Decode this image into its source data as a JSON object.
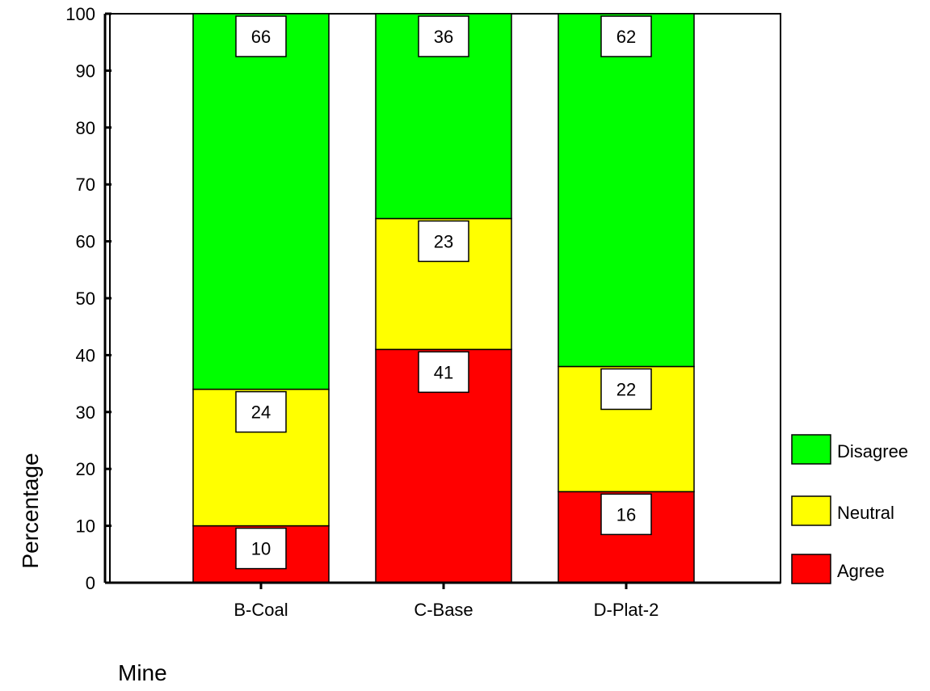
{
  "chart_data": {
    "type": "bar",
    "stacked": true,
    "title": "",
    "xlabel": "Mine",
    "ylabel": "Percentage",
    "ylim": [
      0,
      100
    ],
    "yticks": [
      0,
      10,
      20,
      30,
      40,
      50,
      60,
      70,
      80,
      90,
      100
    ],
    "grid": false,
    "legend_position": "right",
    "categories": [
      "B-Coal",
      "C-Base",
      "D-Plat-2"
    ],
    "series": [
      {
        "name": "Agree",
        "color": "#ff0000",
        "values": [
          10,
          41,
          16
        ]
      },
      {
        "name": "Neutral",
        "color": "#ffff00",
        "values": [
          24,
          23,
          22
        ]
      },
      {
        "name": "Disagree",
        "color": "#00ff00",
        "values": [
          66,
          36,
          62
        ]
      }
    ],
    "legend_order": [
      "Disagree",
      "Neutral",
      "Agree"
    ]
  }
}
